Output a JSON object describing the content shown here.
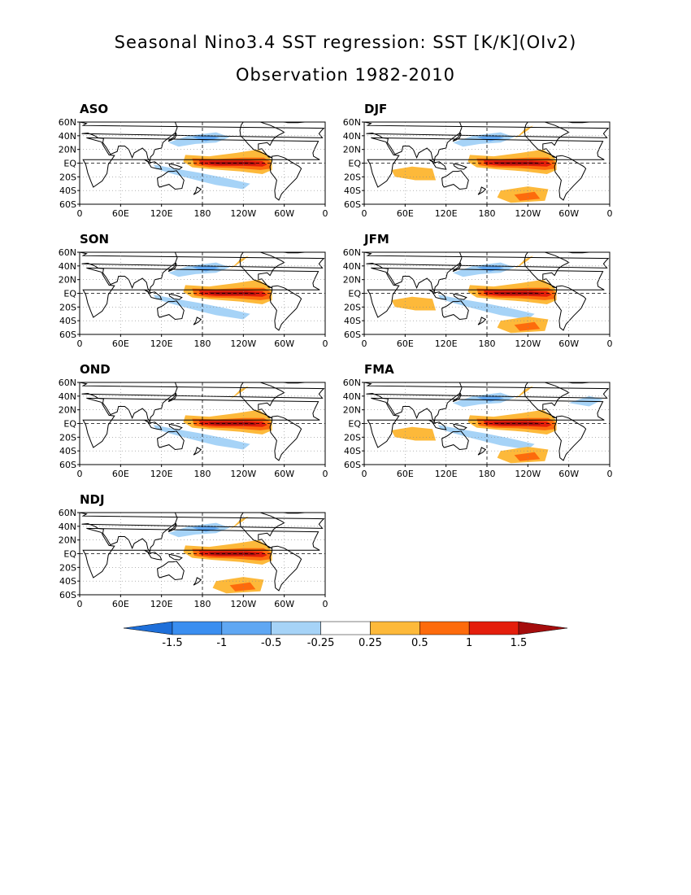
{
  "title": {
    "line1": "Seasonal Nino3.4 SST regression: SST [K/K](OIv2)",
    "line2": "Observation 1982-2010"
  },
  "axis": {
    "lat_ticks": [
      "60N",
      "40N",
      "20N",
      "EQ",
      "20S",
      "40S",
      "60S"
    ],
    "lon_ticks": [
      "0",
      "60E",
      "120E",
      "180",
      "120W",
      "60W",
      "0"
    ]
  },
  "panels": [
    {
      "label": "ASO",
      "pacific_anomaly": "positive",
      "warm_level": 1.5,
      "extras": [
        "cool-sw-pacific",
        "cool-nw-pacific"
      ]
    },
    {
      "label": "SON",
      "pacific_anomaly": "positive",
      "warm_level": 1.5,
      "extras": [
        "cool-sw-pacific",
        "cool-nw-pacific",
        "warm-ne-pacific"
      ]
    },
    {
      "label": "OND",
      "pacific_anomaly": "positive",
      "warm_level": 1.5,
      "extras": [
        "cool-sw-pacific",
        "warm-ne-pacific"
      ]
    },
    {
      "label": "NDJ",
      "pacific_anomaly": "positive",
      "warm_level": 1.5,
      "extras": [
        "cool-nw-pacific",
        "warm-s-pacific",
        "warm-ne-pacific"
      ]
    },
    {
      "label": "DJF",
      "pacific_anomaly": "positive",
      "warm_level": 1.5,
      "extras": [
        "cool-nw-pacific",
        "warm-s-pacific",
        "warm-indian",
        "warm-ne-pacific"
      ]
    },
    {
      "label": "JFM",
      "pacific_anomaly": "positive",
      "warm_level": 1.5,
      "extras": [
        "cool-nw-pacific",
        "cool-sw-pacific",
        "warm-s-pacific",
        "warm-indian",
        "warm-ne-pacific"
      ]
    },
    {
      "label": "FMA",
      "pacific_anomaly": "positive",
      "warm_level": 1.5,
      "extras": [
        "cool-nw-pacific",
        "cool-sw-pacific",
        "warm-s-pacific",
        "warm-indian",
        "warm-ne-pacific",
        "cool-n-atlantic"
      ]
    }
  ],
  "colorbar": {
    "labels": [
      "-1.5",
      "-1",
      "-0.5",
      "-0.25",
      "0.25",
      "0.5",
      "1",
      "1.5"
    ],
    "colors": [
      "#1e6fd9",
      "#3a8ef0",
      "#5fa7f3",
      "#a6d3f7",
      "#ffffff",
      "#fdb93a",
      "#fd6b0c",
      "#e41e0c",
      "#a50d0d"
    ]
  }
}
